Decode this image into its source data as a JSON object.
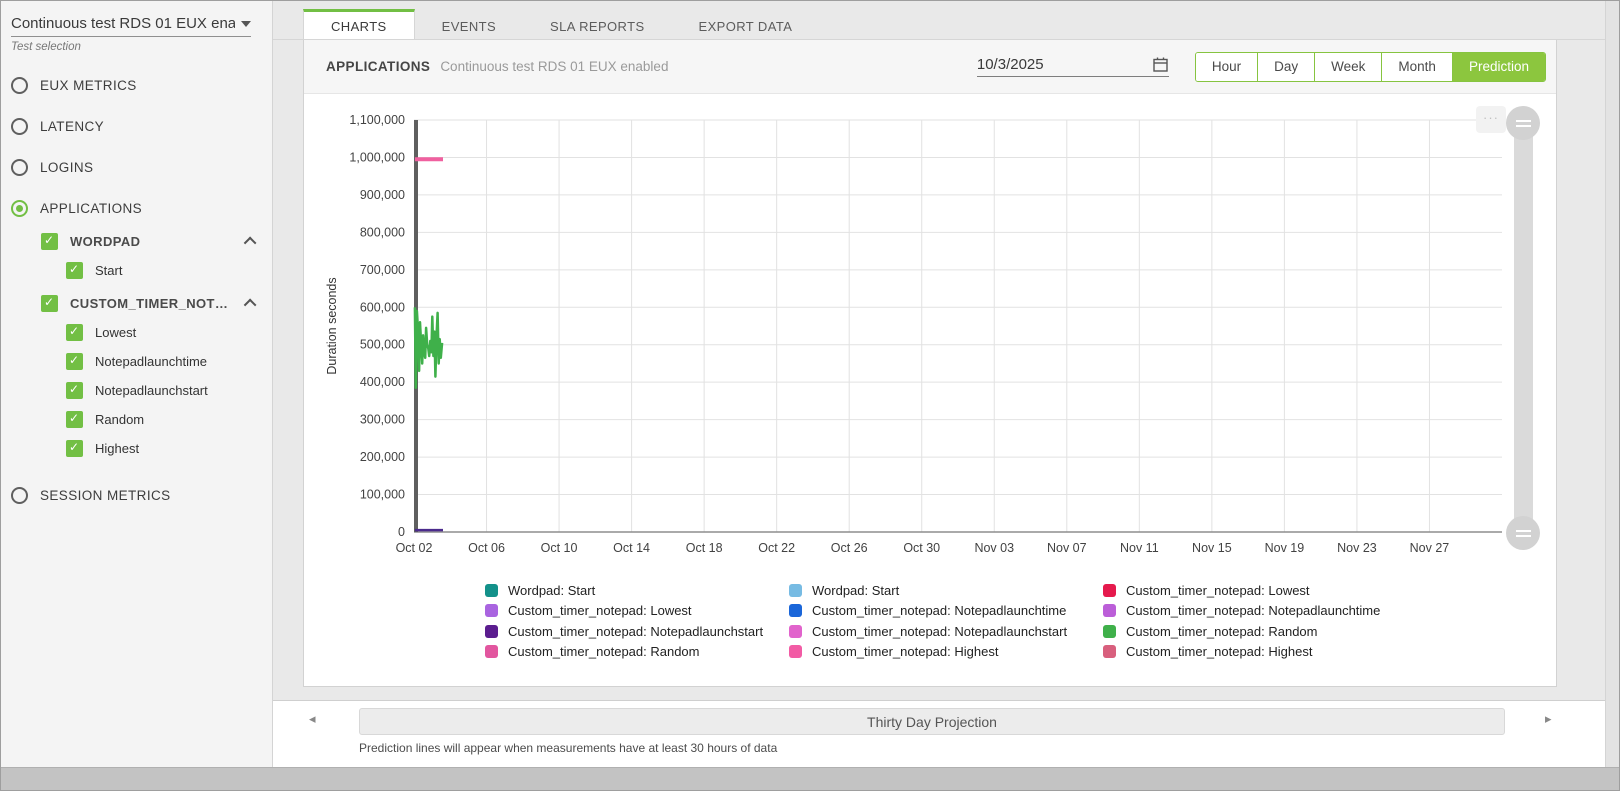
{
  "sidebar": {
    "dropdown": {
      "value": "Continuous test RDS 01 EUX ena…",
      "helper": "Test selection"
    },
    "radios": [
      "EUX METRICS",
      "LATENCY",
      "LOGINS",
      "APPLICATIONS",
      "SESSION METRICS"
    ],
    "selected_radio": "APPLICATIONS",
    "groups": [
      {
        "label": "WORDPAD",
        "checked": true,
        "children": [
          "Start"
        ]
      },
      {
        "label": "CUSTOM_TIMER_NOT…",
        "checked": true,
        "children": [
          "Lowest",
          "Notepadlaunchtime",
          "Notepadlaunchstart",
          "Random",
          "Highest"
        ]
      }
    ]
  },
  "tabs": {
    "items": [
      "CHARTS",
      "EVENTS",
      "SLA REPORTS",
      "EXPORT DATA"
    ],
    "active": "CHARTS"
  },
  "header": {
    "section_title": "APPLICATIONS",
    "test_name": "Continuous test RDS 01 EUX enabled",
    "date_value": "10/3/2025",
    "range_buttons": [
      "Hour",
      "Day",
      "Week",
      "Month",
      "Prediction"
    ],
    "active_range": "Prediction",
    "accent_color": "#8cc63e"
  },
  "chart_data": {
    "type": "line",
    "ylabel": "Duration seconds",
    "ylim": [
      0,
      1100000
    ],
    "ytick_step": 100000,
    "x_domain_days": [
      0,
      60
    ],
    "xtick_step_days": 4,
    "x_ticks": [
      "Oct 02",
      "Oct 06",
      "Oct 10",
      "Oct 14",
      "Oct 18",
      "Oct 22",
      "Oct 26",
      "Oct 30",
      "Nov 03",
      "Nov 07",
      "Nov 11",
      "Nov 15",
      "Nov 19",
      "Nov 23",
      "Nov 27"
    ],
    "grid": true,
    "series": [
      {
        "name": "Custom_timer_notepad: Highest",
        "color": "#f0609f",
        "width": 4,
        "points": [
          [
            0.05,
            995000
          ],
          [
            1.6,
            995000
          ]
        ]
      },
      {
        "name": "Custom_timer_notepad: Random",
        "color": "#3fb04a",
        "width": 2.5,
        "points": [
          [
            0.05,
            600000
          ],
          [
            0.1,
            385000
          ],
          [
            0.16,
            590000
          ],
          [
            0.22,
            540000
          ],
          [
            0.28,
            430000
          ],
          [
            0.33,
            560000
          ],
          [
            0.39,
            505000
          ],
          [
            0.45,
            450000
          ],
          [
            0.5,
            525000
          ],
          [
            0.56,
            480000
          ],
          [
            0.62,
            465000
          ],
          [
            0.67,
            545000
          ],
          [
            0.73,
            500000
          ],
          [
            0.79,
            490000
          ],
          [
            0.84,
            470000
          ],
          [
            0.9,
            510000
          ],
          [
            0.96,
            480000
          ],
          [
            1.01,
            575000
          ],
          [
            1.07,
            470000
          ],
          [
            1.13,
            535000
          ],
          [
            1.18,
            415000
          ],
          [
            1.24,
            520000
          ],
          [
            1.3,
            585000
          ],
          [
            1.36,
            450000
          ],
          [
            1.42,
            515000
          ],
          [
            1.48,
            465000
          ],
          [
            1.55,
            505000
          ]
        ]
      },
      {
        "name": "Custom_timer_notepad: Notepadlaunchstart",
        "color": "#4b2a8c",
        "width": 2.5,
        "points": [
          [
            0.05,
            5000
          ],
          [
            1.6,
            5000
          ]
        ]
      }
    ]
  },
  "legend": {
    "columns": [
      [
        {
          "label": "Wordpad: Start",
          "color": "#13918a"
        },
        {
          "label": "Custom_timer_notepad: Lowest",
          "color": "#a964e0"
        },
        {
          "label": "Custom_timer_notepad: Notepadlaunchstart",
          "color": "#5b1d8f"
        },
        {
          "label": "Custom_timer_notepad: Random",
          "color": "#e2569f"
        }
      ],
      [
        {
          "label": "Wordpad: Start",
          "color": "#77bbe3"
        },
        {
          "label": "Custom_timer_notepad: Notepadlaunchtime",
          "color": "#1a66d9"
        },
        {
          "label": "Custom_timer_notepad: Notepadlaunchstart",
          "color": "#e163cc"
        },
        {
          "label": "Custom_timer_notepad: Highest",
          "color": "#f25ba5"
        }
      ],
      [
        {
          "label": "Custom_timer_notepad: Lowest",
          "color": "#e51a4d"
        },
        {
          "label": "Custom_timer_notepad: Notepadlaunchtime",
          "color": "#bb5ed8"
        },
        {
          "label": "Custom_timer_notepad: Random",
          "color": "#3fb04a"
        },
        {
          "label": "Custom_timer_notepad: Highest",
          "color": "#d85f7d"
        }
      ]
    ]
  },
  "footer": {
    "projection_title": "Thirty Day Projection",
    "note": "Prediction lines will appear when measurements have at least 30 hours of data"
  }
}
